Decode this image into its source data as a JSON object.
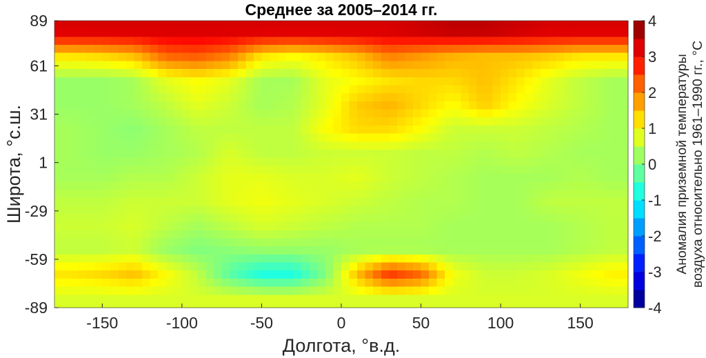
{
  "chart_data": {
    "type": "heatmap",
    "title": "Среднее за 2005–2014 гг.",
    "xlabel": "Долгота, °в.д.",
    "ylabel": "Широта, °с.ш.",
    "colorbar_label": [
      "Аномалия приземной температуры",
      "воздуха относительно 1961–1990 гг., °C"
    ],
    "xlim": [
      -180,
      180
    ],
    "ylim": [
      -89,
      89
    ],
    "xticks": [
      -150,
      -100,
      -50,
      0,
      50,
      100,
      150
    ],
    "yticks": [
      89,
      61,
      31,
      1,
      -29,
      -59,
      -89
    ],
    "clim": [
      -4,
      4
    ],
    "cticks": [
      4,
      3,
      2,
      1,
      0,
      -1,
      -2,
      -3,
      -4
    ],
    "colormap": "jet",
    "colormap_levels": 16,
    "lon_centers": [
      -170,
      -150,
      -130,
      -110,
      -90,
      -70,
      -50,
      -30,
      -10,
      10,
      30,
      50,
      70,
      90,
      110,
      130,
      150,
      170
    ],
    "lat_centers": [
      82,
      67,
      52,
      37,
      22,
      7,
      -8,
      -23,
      -38,
      -53,
      -68,
      -83
    ],
    "values": [
      [
        3.3,
        3.3,
        3.3,
        3.3,
        3.3,
        3.3,
        3.3,
        3.3,
        3.3,
        3.3,
        3.3,
        3.4,
        3.5,
        3.5,
        3.4,
        3.3,
        3.3,
        3.3
      ],
      [
        1.2,
        1.3,
        1.5,
        2.2,
        2.3,
        2.0,
        1.2,
        1.0,
        1.2,
        1.5,
        2.0,
        1.8,
        1.6,
        1.5,
        1.5,
        1.4,
        1.2,
        1.2
      ],
      [
        0.2,
        0.2,
        0.3,
        0.8,
        1.0,
        0.8,
        0.3,
        0.3,
        0.8,
        1.0,
        1.2,
        1.3,
        1.3,
        1.5,
        1.2,
        0.8,
        0.5,
        0.3
      ],
      [
        0.2,
        0.2,
        0.3,
        0.5,
        0.8,
        0.6,
        0.3,
        0.4,
        0.8,
        1.4,
        1.6,
        1.3,
        1.0,
        1.4,
        1.0,
        0.7,
        0.5,
        0.3
      ],
      [
        0.3,
        0.2,
        0.1,
        0.3,
        0.5,
        0.5,
        0.5,
        0.5,
        1.0,
        1.3,
        1.3,
        1.0,
        0.6,
        0.6,
        0.6,
        0.5,
        0.4,
        0.3
      ],
      [
        0.3,
        0.2,
        0.2,
        0.3,
        0.4,
        0.7,
        0.5,
        0.5,
        0.6,
        0.6,
        0.6,
        0.5,
        0.5,
        0.4,
        0.5,
        0.4,
        0.3,
        0.3
      ],
      [
        0.3,
        0.3,
        0.4,
        0.4,
        0.6,
        0.8,
        0.8,
        0.7,
        0.7,
        0.8,
        0.6,
        0.5,
        0.4,
        0.3,
        0.3,
        0.3,
        0.4,
        0.3
      ],
      [
        0.5,
        0.5,
        0.6,
        0.6,
        0.6,
        0.8,
        0.9,
        0.8,
        0.7,
        0.6,
        0.5,
        0.4,
        0.4,
        0.3,
        0.3,
        0.5,
        0.5,
        0.5
      ],
      [
        0.6,
        0.6,
        0.7,
        0.5,
        0.3,
        0.5,
        0.7,
        0.6,
        0.5,
        0.4,
        0.4,
        0.4,
        0.3,
        0.3,
        0.3,
        0.3,
        0.4,
        0.5
      ],
      [
        0.5,
        0.5,
        0.6,
        0.2,
        0.0,
        0.1,
        0.2,
        0.2,
        0.2,
        0.3,
        0.3,
        0.3,
        0.3,
        0.3,
        0.3,
        0.3,
        0.4,
        0.5
      ],
      [
        1.2,
        1.3,
        1.5,
        1.0,
        0.5,
        -0.3,
        -0.8,
        -0.8,
        0.0,
        1.5,
        2.6,
        2.2,
        0.9,
        0.6,
        0.6,
        0.7,
        0.9,
        1.1
      ],
      [
        0.7,
        0.7,
        0.7,
        0.7,
        0.7,
        0.7,
        0.7,
        0.7,
        0.7,
        0.7,
        0.7,
        0.7,
        0.7,
        0.7,
        0.7,
        0.7,
        0.7,
        0.7
      ]
    ]
  }
}
